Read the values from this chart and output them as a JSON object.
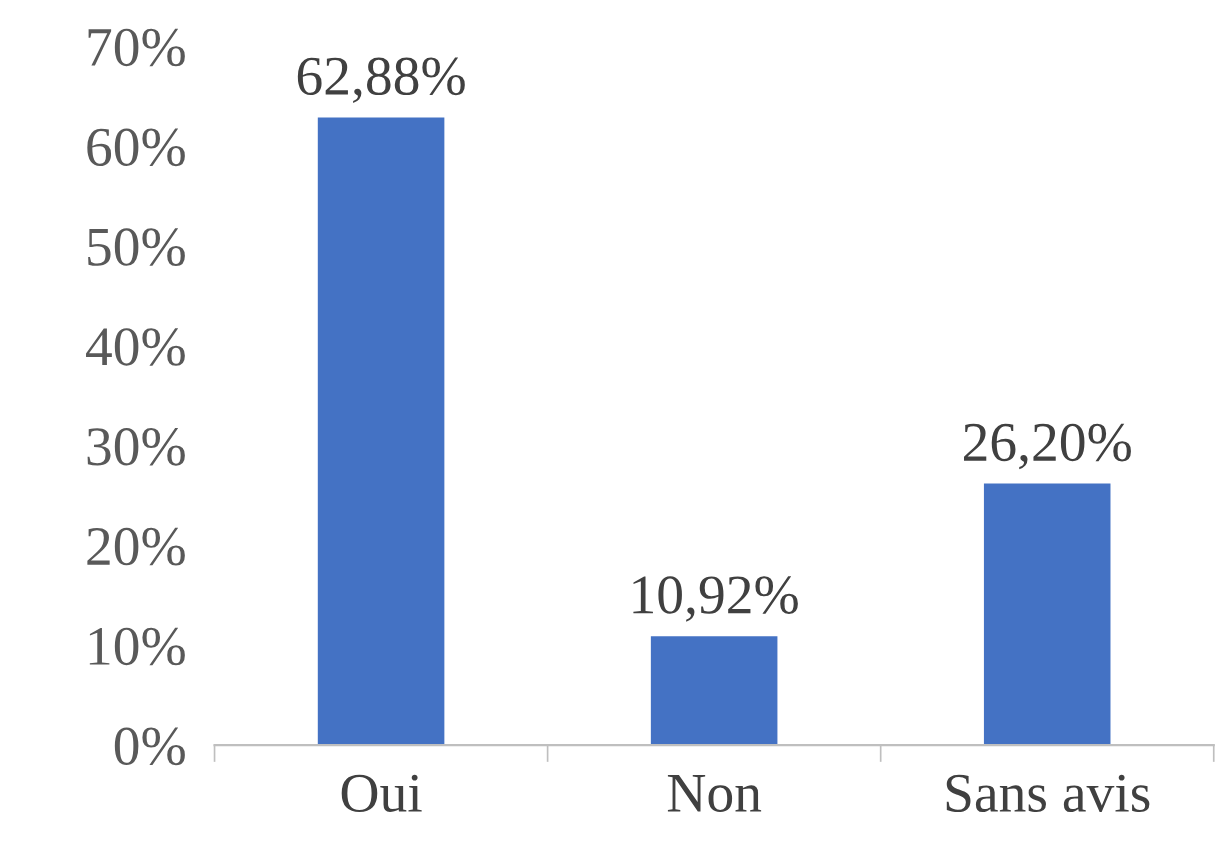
{
  "chart_data": {
    "type": "bar",
    "categories": [
      "Oui",
      "Non",
      "Sans avis"
    ],
    "values": [
      62.88,
      10.92,
      26.2
    ],
    "value_labels": [
      "62,88%",
      "10,92%",
      "26,20%"
    ],
    "color": "#4472c4",
    "ylim": [
      0,
      70
    ],
    "yticks": [
      {
        "value": 0,
        "label": "0%"
      },
      {
        "value": 10,
        "label": "10%"
      },
      {
        "value": 20,
        "label": "20%"
      },
      {
        "value": 30,
        "label": "30%"
      },
      {
        "value": 40,
        "label": "40%"
      },
      {
        "value": 50,
        "label": "50%"
      },
      {
        "value": 60,
        "label": "60%"
      },
      {
        "value": 70,
        "label": "70%"
      }
    ],
    "grid": false,
    "legend": false
  }
}
